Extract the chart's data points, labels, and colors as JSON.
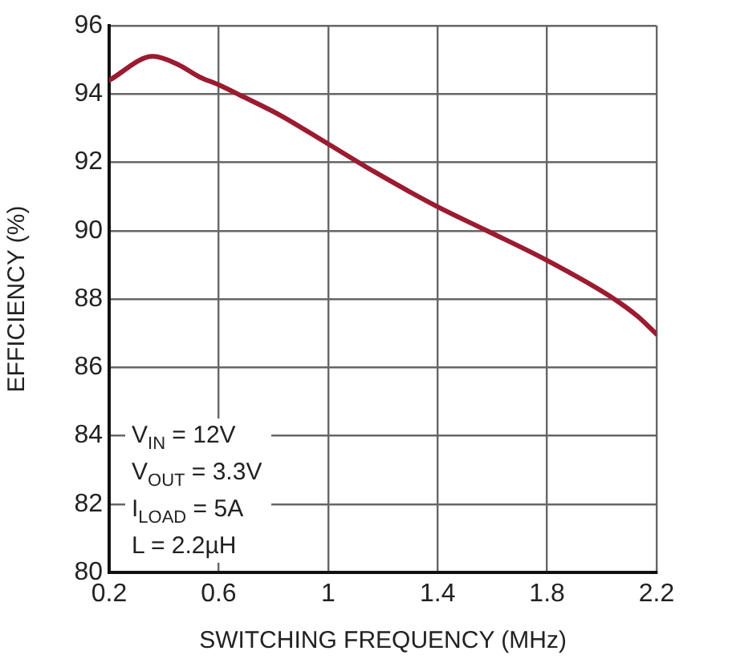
{
  "chart_data": {
    "type": "line",
    "xlabel": "SWITCHING FREQUENCY (MHz)",
    "ylabel": "EFFICIENCY (%)",
    "x": [
      0.2,
      0.36,
      0.45,
      0.53,
      0.6,
      0.68,
      0.82,
      1.0,
      1.17,
      1.4,
      1.58,
      1.8,
      2.03,
      2.13,
      2.2
    ],
    "series": [
      {
        "color": "#9b1b30",
        "values": [
          94.4,
          95.1,
          94.87,
          94.5,
          94.27,
          93.96,
          93.4,
          92.54,
          91.72,
          90.7,
          90.0,
          89.13,
          88.08,
          87.5,
          86.97
        ]
      }
    ],
    "xlim": [
      0.2,
      2.2
    ],
    "xticks": [
      0.2,
      0.6,
      1,
      1.4,
      1.8,
      2.2
    ],
    "ylim": [
      80,
      96
    ],
    "yticks": [
      80,
      82,
      84,
      86,
      88,
      90,
      92,
      94,
      96
    ],
    "grid": true,
    "marker": "none",
    "line_style": "solid",
    "legend": false,
    "annotations": [
      "V$_{IN}$ = 12V",
      "V$_{OUT}$ = 3.3V",
      "I$_{LOAD}$ = 5A",
      "L = 2.2µH"
    ]
  }
}
